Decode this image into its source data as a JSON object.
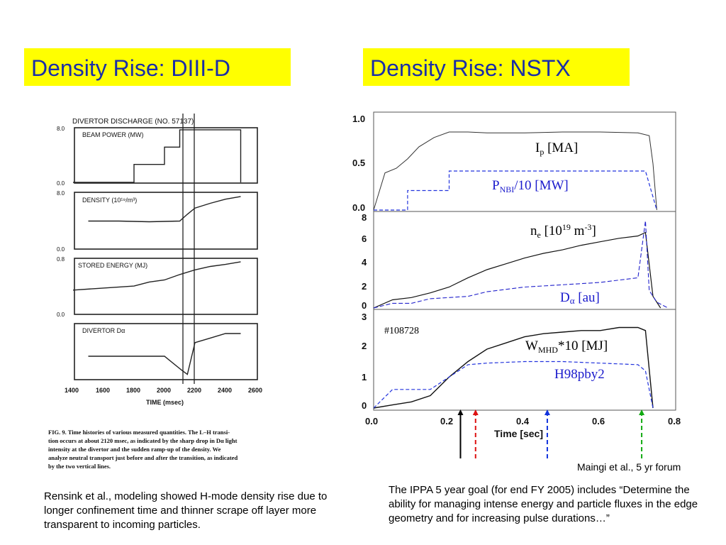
{
  "titles": {
    "left": "Density Rise: DIII-D",
    "right": "Density Rise:  NSTX"
  },
  "captions": {
    "left": "Rensink  et al., modeling showed H-mode density rise due to longer confinement  time and thinner scrape off layer more transparent to incoming particles.",
    "right": "The IPPA 5 year goal (for end FY 2005) includes “Determine the ability for managing intense energy and particle fluxes in the edge geometry and for increasing pulse durations…”",
    "credit": "Maingi  et al., 5 yr forum"
  },
  "diiid_figure": {
    "header": "DIVERTOR DISCHARGE (NO. 57137)",
    "panels": [
      "BEAM POWER (MW)",
      "DENSITY (10¹⁹/m³)",
      "STORED ENERGY (MJ)",
      "DIVERTOR Dα"
    ],
    "yticks": [
      [
        "8.0",
        "0.0"
      ],
      [
        "8.0",
        "0.0"
      ],
      [
        "0.8",
        "0.0"
      ]
    ],
    "xticks": [
      "1400",
      "1600",
      "1800",
      "2000",
      "2200",
      "2400",
      "2600"
    ],
    "xlabel": "TIME (msec)",
    "fig_caption_lines": [
      "FIG. 9.  Time histories of various measured quantities. The L–H transi-",
      "tion occurs at about 2120 msec, as indicated by the sharp drop in Dα light",
      "intensity at the divertor and the sudden ramp-up of the density. We",
      "analyze neutral transport just before and after the transition, as indicated",
      "by the two vertical lines."
    ]
  },
  "nstx_figure": {
    "shot": "#108728",
    "xlabel": "Time [sec]",
    "xticks": [
      "0.0",
      "0.2",
      "0.4",
      "0.6",
      "0.8"
    ],
    "panel1": {
      "yticks": [
        "1.0",
        "0.5",
        "0.0"
      ],
      "label_ip": "I",
      "label_ip_sub": "p",
      "label_ip_unit": " [MA]",
      "label_pnbi": "P",
      "label_pnbi_sub": "NBI",
      "label_pnbi_unit": "/10 [MW]"
    },
    "panel2": {
      "yticks": [
        "8",
        "6",
        "4",
        "2",
        "0"
      ],
      "label_ne": "n",
      "label_ne_sub": "e",
      "label_ne_unit": " [10",
      "label_ne_sup": "19",
      "label_ne_unit2": " m",
      "label_ne_sup2": "-3",
      "label_ne_close": "]",
      "label_da": "D",
      "label_da_greek": "α",
      "label_da_unit": " [au]"
    },
    "panel3": {
      "yticks": [
        "3",
        "2",
        "1",
        "0"
      ],
      "label_w": "W",
      "label_w_sub": "MHD",
      "label_w_unit": "*10 [MJ]",
      "label_h": "H98pby2"
    }
  },
  "chart_data": [
    {
      "type": "line",
      "title": "Density Rise: DIII-D",
      "xlabel": "TIME (msec)",
      "xlim": [
        1400,
        2600
      ],
      "series": [
        {
          "name": "BEAM POWER (MW)",
          "ylim": [
            0,
            8
          ],
          "x": [
            1400,
            1800,
            1800,
            2000,
            2000,
            2100,
            2100,
            2500,
            2500
          ],
          "y": [
            0,
            0,
            2.7,
            2.7,
            5.3,
            5.3,
            7.9,
            7.9,
            0
          ]
        },
        {
          "name": "DENSITY (10¹⁹/m³)",
          "ylim": [
            0,
            8
          ],
          "x": [
            1500,
            1700,
            1900,
            2100,
            2150,
            2200,
            2300,
            2400,
            2500
          ],
          "y": [
            4.0,
            4.0,
            3.9,
            4.0,
            5.0,
            5.9,
            6.6,
            7.2,
            7.6
          ]
        },
        {
          "name": "STORED ENERGY (MJ)",
          "ylim": [
            0,
            0.8
          ],
          "x": [
            1400,
            1600,
            1800,
            1900,
            2000,
            2100,
            2200,
            2300,
            2400,
            2500
          ],
          "y": [
            0.35,
            0.38,
            0.41,
            0.47,
            0.5,
            0.58,
            0.65,
            0.7,
            0.73,
            0.77
          ]
        },
        {
          "name": "DIVERTOR Dα",
          "x": [
            1500,
            2000,
            2110,
            2150,
            2200,
            2300,
            2400,
            2500
          ],
          "y": [
            0.5,
            0.5,
            0.2,
            0.1,
            0.8,
            0.9,
            1.0,
            1.0
          ]
        }
      ]
    },
    {
      "type": "line",
      "title": "Density Rise:  NSTX",
      "xlabel": "Time [sec]",
      "xlim": [
        0,
        0.8
      ],
      "series": [
        {
          "name": "Ip [MA]",
          "ylim": [
            0,
            1.0
          ],
          "x": [
            0.0,
            0.03,
            0.06,
            0.09,
            0.12,
            0.16,
            0.2,
            0.25,
            0.3,
            0.4,
            0.5,
            0.6,
            0.7,
            0.73,
            0.74,
            0.75
          ],
          "y": [
            0.0,
            0.4,
            0.45,
            0.55,
            0.68,
            0.78,
            0.84,
            0.84,
            0.83,
            0.83,
            0.84,
            0.84,
            0.83,
            0.8,
            0.5,
            0.0
          ]
        },
        {
          "name": "PNBI/10 [MW]",
          "ylim": [
            0,
            1.0
          ],
          "x": [
            0.0,
            0.09,
            0.09,
            0.2,
            0.2,
            0.4,
            0.6,
            0.72,
            0.72,
            0.75
          ],
          "y": [
            0.0,
            0.0,
            0.21,
            0.21,
            0.42,
            0.42,
            0.42,
            0.42,
            0.42,
            0.0
          ]
        },
        {
          "name": "ne [10^19 m^-3]",
          "ylim": [
            0,
            8
          ],
          "x": [
            0.0,
            0.05,
            0.1,
            0.15,
            0.2,
            0.25,
            0.3,
            0.35,
            0.4,
            0.45,
            0.5,
            0.55,
            0.6,
            0.65,
            0.7,
            0.72,
            0.74,
            0.76
          ],
          "y": [
            0.0,
            0.7,
            0.9,
            1.3,
            1.8,
            2.6,
            3.3,
            3.8,
            4.3,
            4.7,
            5.0,
            5.4,
            5.7,
            6.0,
            6.2,
            6.5,
            1.0,
            0.0
          ]
        },
        {
          "name": "Dα [au]",
          "ylim": [
            0,
            8
          ],
          "x": [
            0.0,
            0.05,
            0.1,
            0.15,
            0.2,
            0.25,
            0.3,
            0.4,
            0.5,
            0.6,
            0.7,
            0.72,
            0.73,
            0.75,
            0.78
          ],
          "y": [
            0.0,
            0.4,
            0.4,
            0.8,
            0.9,
            1.0,
            1.4,
            1.8,
            2.0,
            2.2,
            2.6,
            7.5,
            1.5,
            0.5,
            0.0
          ]
        },
        {
          "name": "WMHD*10 [MJ]",
          "ylim": [
            0,
            3
          ],
          "x": [
            0.0,
            0.05,
            0.1,
            0.15,
            0.2,
            0.25,
            0.3,
            0.35,
            0.4,
            0.45,
            0.5,
            0.55,
            0.6,
            0.65,
            0.7,
            0.72,
            0.74
          ],
          "y": [
            0.0,
            0.1,
            0.2,
            0.4,
            1.0,
            1.5,
            1.9,
            2.1,
            2.3,
            2.4,
            2.45,
            2.5,
            2.5,
            2.6,
            2.6,
            2.5,
            0.0
          ]
        },
        {
          "name": "H98pby2",
          "ylim": [
            0,
            3
          ],
          "x": [
            0.0,
            0.05,
            0.1,
            0.15,
            0.2,
            0.25,
            0.3,
            0.4,
            0.5,
            0.6,
            0.7,
            0.72,
            0.74
          ],
          "y": [
            0.0,
            0.6,
            0.6,
            0.6,
            1.0,
            1.4,
            1.45,
            1.5,
            1.5,
            1.45,
            1.4,
            1.2,
            0.0
          ]
        }
      ],
      "markers": [
        {
          "x": 0.23,
          "color": "#000000",
          "style": "solid"
        },
        {
          "x": 0.27,
          "color": "#dd1111",
          "style": "dashed"
        },
        {
          "x": 0.46,
          "color": "#1133dd",
          "style": "dashed"
        },
        {
          "x": 0.71,
          "color": "#11aa11",
          "style": "dashed"
        }
      ]
    }
  ]
}
